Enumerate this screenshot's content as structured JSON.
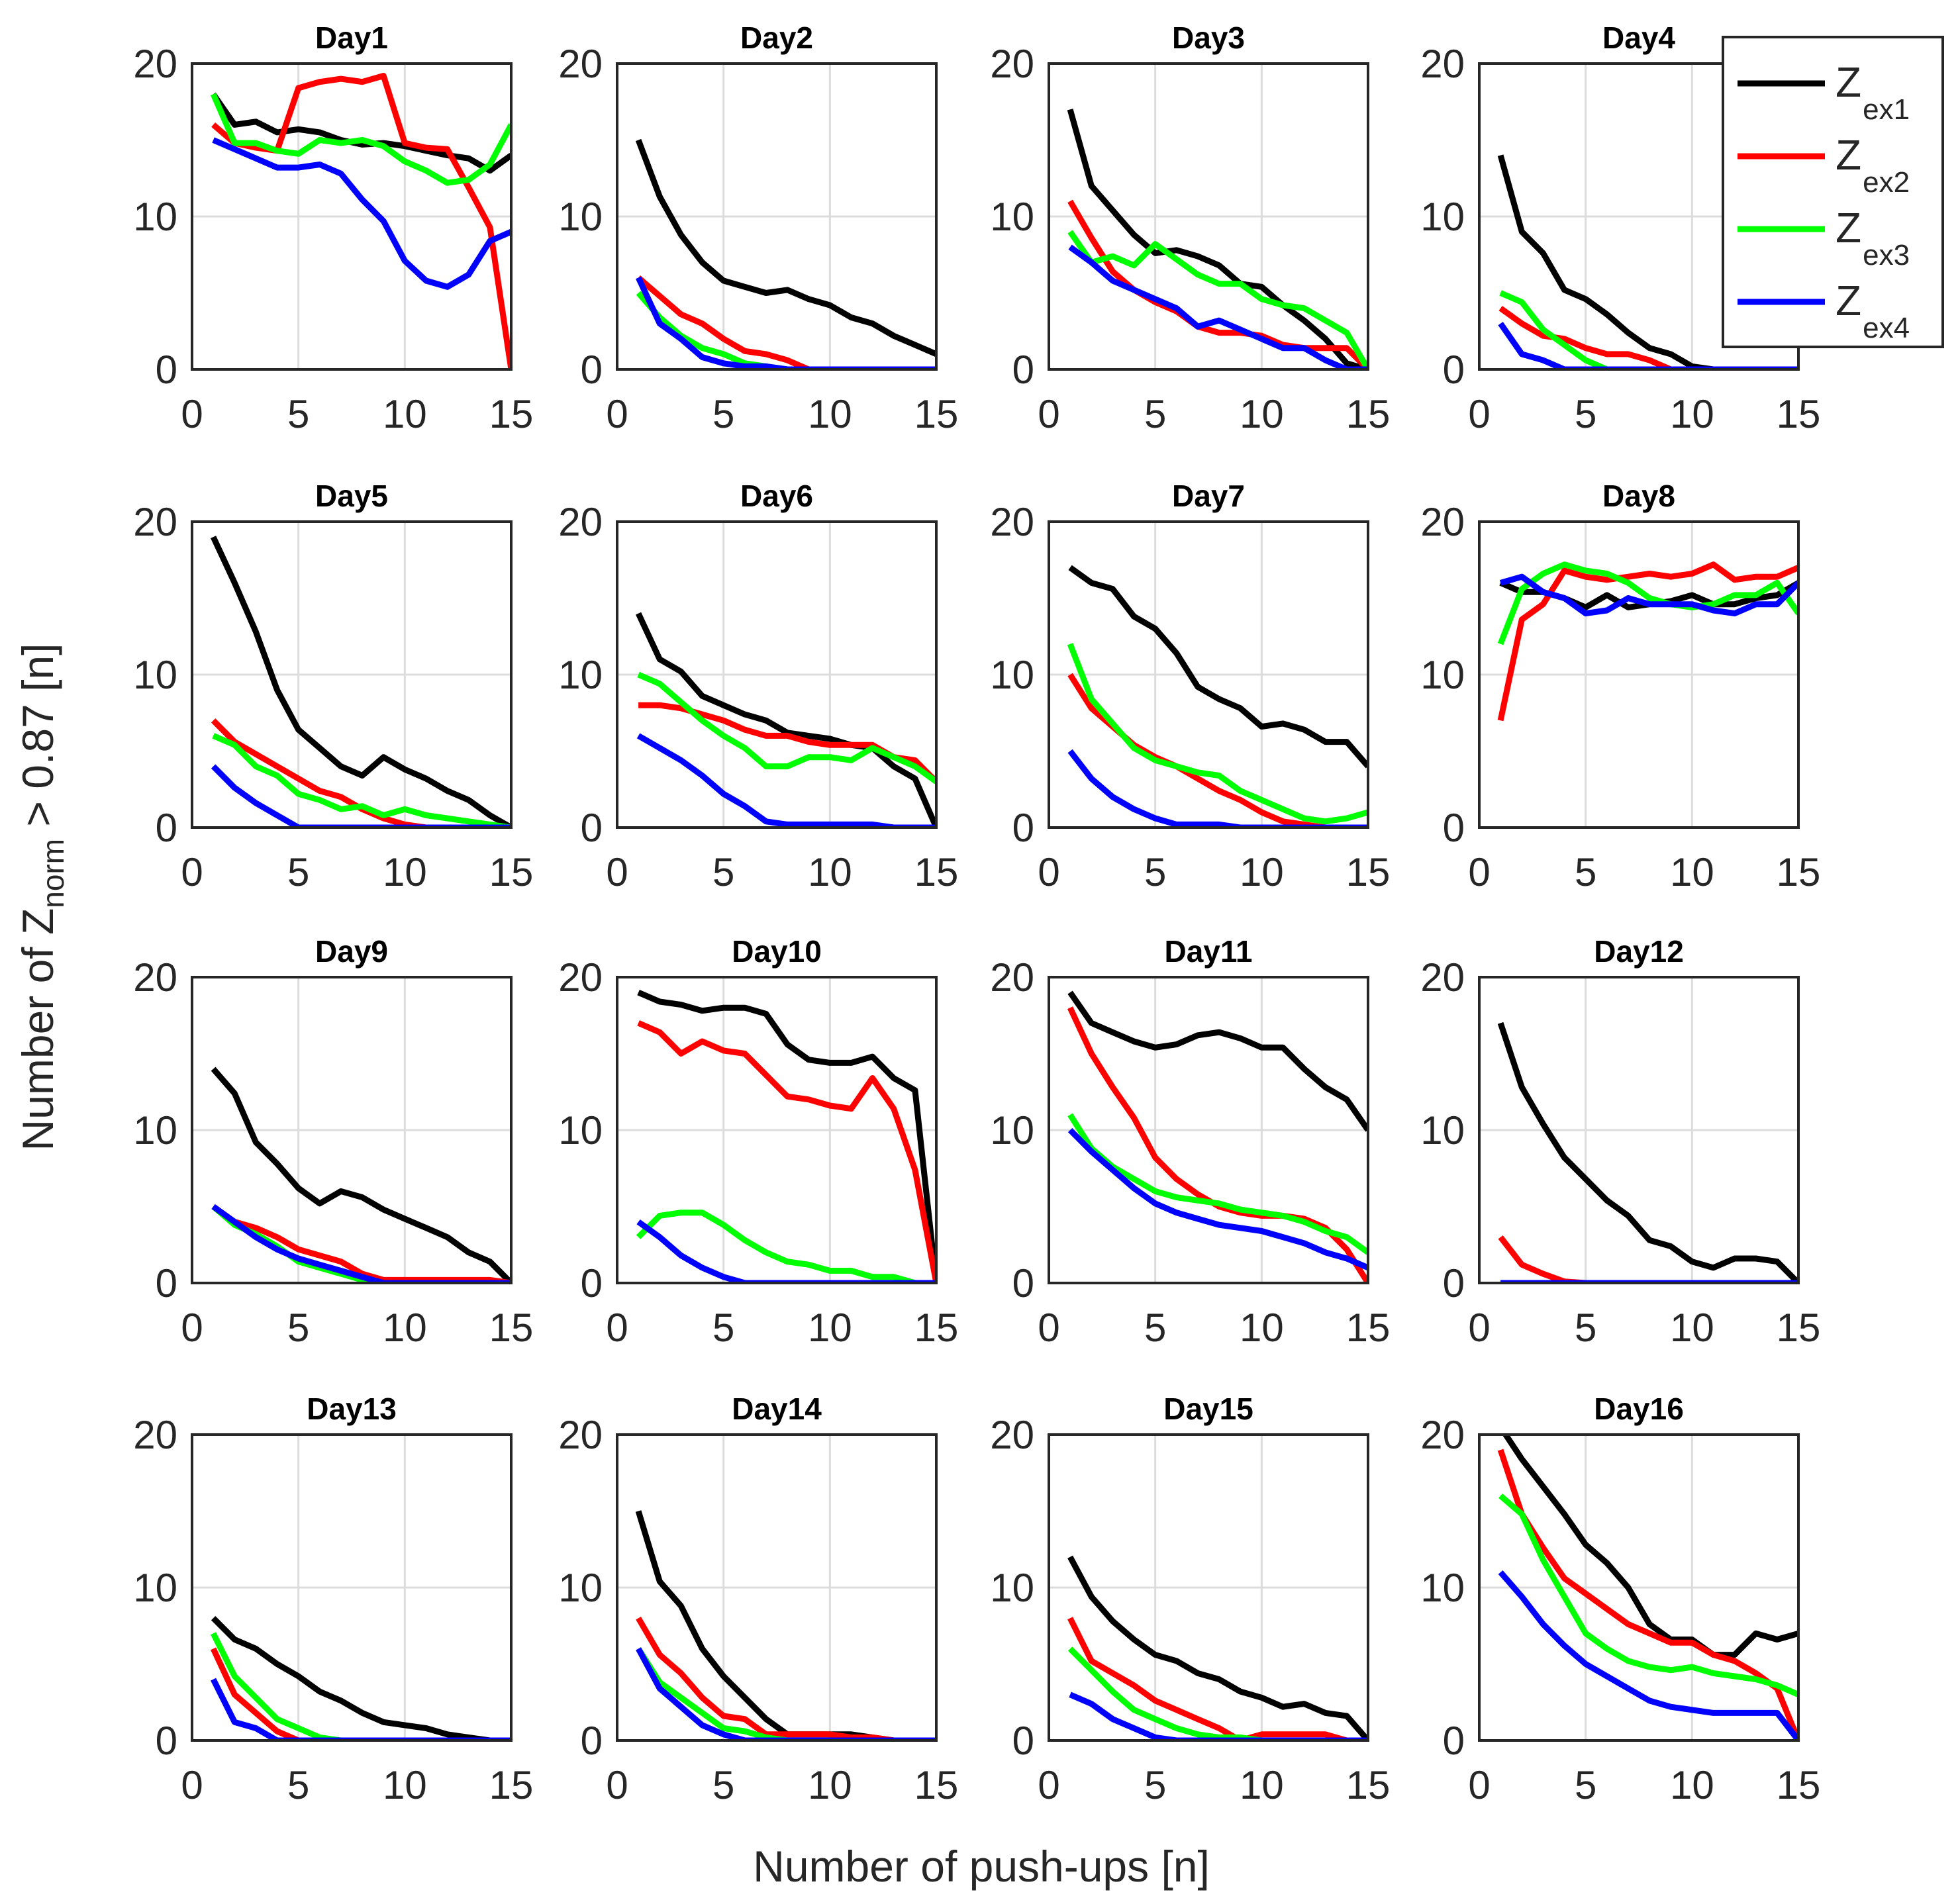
{
  "chart_data": {
    "type": "line",
    "layout": "small-multiples 4x4",
    "xlabel": "Number of push-ups [n]",
    "ylabel": {
      "prefix": "Number of Z",
      "subscript": "norm",
      "suffix": " > 0.87 [n]"
    },
    "xlim": [
      0,
      15
    ],
    "ylim": [
      0,
      20
    ],
    "xticks": [
      0,
      5,
      10,
      15
    ],
    "yticks": [
      0,
      10,
      20
    ],
    "grid": true,
    "legend": {
      "placement": "top-right",
      "entries": [
        {
          "main": "Z",
          "sub": "ex1",
          "color": "#000000"
        },
        {
          "main": "Z",
          "sub": "ex2",
          "color": "#ff0000"
        },
        {
          "main": "Z",
          "sub": "ex3",
          "color": "#00ff00"
        },
        {
          "main": "Z",
          "sub": "ex4",
          "color": "#0000ff"
        }
      ]
    },
    "series_colors": [
      "#000000",
      "#ff0000",
      "#00ff00",
      "#0000ff"
    ],
    "x": [
      1,
      2,
      3,
      4,
      5,
      6,
      7,
      8,
      9,
      10,
      11,
      12,
      13,
      14,
      15
    ],
    "panels": [
      {
        "title": "Day1",
        "series": [
          [
            18,
            16,
            16.2,
            15.5,
            15.7,
            15.5,
            15,
            14.7,
            14.8,
            14.6,
            14.3,
            14,
            13.8,
            13,
            14
          ],
          [
            16,
            14.8,
            14.5,
            14.3,
            18.4,
            18.8,
            19,
            18.8,
            19.2,
            14.8,
            14.5,
            14.4,
            11.9,
            9.3,
            0
          ],
          [
            18,
            14.8,
            14.8,
            14.3,
            14.1,
            15,
            14.8,
            15,
            14.6,
            13.6,
            13,
            12.2,
            12.4,
            13.4,
            16
          ],
          [
            15,
            14.4,
            13.8,
            13.2,
            13.2,
            13.4,
            12.8,
            11.1,
            9.7,
            7.1,
            5.8,
            5.4,
            6.2,
            8.4,
            9
          ]
        ]
      },
      {
        "title": "Day2",
        "series": [
          [
            15,
            11.3,
            8.8,
            7,
            5.8,
            5.4,
            5,
            5.2,
            4.6,
            4.2,
            3.4,
            3,
            2.2,
            1.6,
            1
          ],
          [
            6,
            4.8,
            3.6,
            3,
            2,
            1.2,
            1,
            0.6,
            0,
            0,
            0,
            0,
            0,
            0,
            0
          ],
          [
            5,
            3.4,
            2.2,
            1.4,
            1,
            0.4,
            0.2,
            0,
            0,
            0,
            0,
            0,
            0,
            0,
            0
          ],
          [
            6,
            3,
            2,
            0.8,
            0.4,
            0.2,
            0.2,
            0,
            0,
            0,
            0,
            0,
            0,
            0,
            0
          ]
        ]
      },
      {
        "title": "Day3",
        "series": [
          [
            17,
            12,
            10.4,
            8.8,
            7.6,
            7.8,
            7.4,
            6.8,
            5.6,
            5.4,
            4.2,
            3.2,
            2,
            0.4,
            0
          ],
          [
            11,
            8.6,
            6.4,
            5.2,
            4.4,
            3.8,
            2.8,
            2.4,
            2.4,
            2.2,
            1.6,
            1.4,
            1.4,
            1.4,
            0
          ],
          [
            9,
            7,
            7.4,
            6.8,
            8.2,
            7.2,
            6.2,
            5.6,
            5.6,
            4.6,
            4.2,
            4,
            3.2,
            2.4,
            0
          ],
          [
            8,
            7,
            5.8,
            5.2,
            4.6,
            4,
            2.8,
            3.2,
            2.6,
            2,
            1.4,
            1.4,
            0.6,
            0,
            0
          ]
        ]
      },
      {
        "title": "Day4",
        "series": [
          [
            14,
            9,
            7.6,
            5.2,
            4.6,
            3.6,
            2.4,
            1.4,
            1,
            0.2,
            0,
            0,
            0,
            0,
            0
          ],
          [
            4,
            3,
            2.2,
            2,
            1.4,
            1,
            1,
            0.6,
            0,
            0,
            0,
            0,
            0,
            0,
            0
          ],
          [
            5,
            4.4,
            2.6,
            1.6,
            0.6,
            0,
            0,
            0,
            0,
            0,
            0,
            0,
            0,
            0,
            0
          ],
          [
            3,
            1,
            0.6,
            0,
            0,
            0,
            0,
            0,
            0,
            0,
            0,
            0,
            0,
            0,
            0
          ]
        ]
      },
      {
        "title": "Day5",
        "series": [
          [
            19,
            16,
            12.8,
            9,
            6.4,
            5.2,
            4,
            3.4,
            4.6,
            3.8,
            3.2,
            2.4,
            1.8,
            0.8,
            0
          ],
          [
            7,
            5.6,
            4.8,
            4,
            3.2,
            2.4,
            2,
            1.2,
            0.6,
            0.2,
            0,
            0,
            0,
            0,
            0
          ],
          [
            6,
            5.4,
            4,
            3.4,
            2.2,
            1.8,
            1.2,
            1.4,
            0.8,
            1.2,
            0.8,
            0.6,
            0.4,
            0.2,
            0
          ],
          [
            4,
            2.6,
            1.6,
            0.8,
            0,
            0,
            0,
            0,
            0,
            0,
            0,
            0,
            0,
            0,
            0
          ]
        ]
      },
      {
        "title": "Day6",
        "series": [
          [
            14,
            11,
            10.2,
            8.6,
            8,
            7.4,
            7,
            6.2,
            6,
            5.8,
            5.4,
            5.2,
            4,
            3.2,
            0
          ],
          [
            8,
            8,
            7.8,
            7.4,
            7,
            6.4,
            6,
            6,
            5.6,
            5.4,
            5.4,
            5.4,
            4.6,
            4.4,
            3
          ],
          [
            10,
            9.4,
            8.2,
            7,
            6,
            5.2,
            4,
            4,
            4.6,
            4.6,
            4.4,
            5.2,
            4.6,
            4,
            3
          ],
          [
            6,
            5.2,
            4.4,
            3.4,
            2.2,
            1.4,
            0.4,
            0.2,
            0.2,
            0.2,
            0.2,
            0.2,
            0,
            0,
            0
          ]
        ]
      },
      {
        "title": "Day7",
        "series": [
          [
            17,
            16,
            15.6,
            13.8,
            13,
            11.4,
            9.2,
            8.4,
            7.8,
            6.6,
            6.8,
            6.4,
            5.6,
            5.6,
            4
          ],
          [
            10,
            7.8,
            6.6,
            5.4,
            4.6,
            4,
            3.2,
            2.4,
            1.8,
            1,
            0.4,
            0.2,
            0,
            0,
            0
          ],
          [
            12,
            8.4,
            6.8,
            5.2,
            4.4,
            4,
            3.6,
            3.4,
            2.4,
            1.8,
            1.2,
            0.6,
            0.4,
            0.6,
            1
          ],
          [
            5,
            3.2,
            2,
            1.2,
            0.6,
            0.2,
            0.2,
            0.2,
            0,
            0,
            0,
            0,
            0,
            0,
            0
          ]
        ]
      },
      {
        "title": "Day8",
        "series": [
          [
            16,
            15.4,
            15.4,
            15,
            14.4,
            15.2,
            14.4,
            14.6,
            14.8,
            15.2,
            14.6,
            14.6,
            15,
            15.2,
            16
          ],
          [
            7,
            13.6,
            14.6,
            16.8,
            16.4,
            16.2,
            16.4,
            16.6,
            16.4,
            16.6,
            17.2,
            16.2,
            16.4,
            16.4,
            17
          ],
          [
            12,
            15.6,
            16.6,
            17.2,
            16.8,
            16.6,
            16,
            15,
            14.6,
            14.4,
            14.6,
            15.2,
            15.2,
            16,
            14
          ],
          [
            16,
            16.4,
            15.4,
            15,
            14,
            14.2,
            15,
            14.6,
            14.6,
            14.6,
            14.2,
            14,
            14.6,
            14.6,
            16
          ]
        ]
      },
      {
        "title": "Day9",
        "series": [
          [
            14,
            12.4,
            9.2,
            7.8,
            6.2,
            5.2,
            6,
            5.6,
            4.8,
            4.2,
            3.6,
            3,
            2,
            1.4,
            0
          ],
          [
            5,
            4,
            3.6,
            3,
            2.2,
            1.8,
            1.4,
            0.6,
            0.2,
            0.2,
            0.2,
            0.2,
            0.2,
            0.2,
            0
          ],
          [
            5,
            3.8,
            3.2,
            2.4,
            1.4,
            1,
            0.6,
            0.2,
            0,
            0,
            0,
            0,
            0,
            0,
            0
          ],
          [
            5,
            4,
            3,
            2.2,
            1.6,
            1.2,
            0.8,
            0.4,
            0,
            0,
            0,
            0,
            0,
            0,
            0
          ]
        ]
      },
      {
        "title": "Day10",
        "series": [
          [
            19,
            18.4,
            18.2,
            17.8,
            18,
            18,
            17.6,
            15.6,
            14.6,
            14.4,
            14.4,
            14.8,
            13.4,
            12.6,
            0
          ],
          [
            17,
            16.4,
            15,
            15.8,
            15.2,
            15,
            13.6,
            12.2,
            12,
            11.6,
            11.4,
            13.4,
            11.4,
            7.4,
            0
          ],
          [
            3,
            4.4,
            4.6,
            4.6,
            3.8,
            2.8,
            2,
            1.4,
            1.2,
            0.8,
            0.8,
            0.4,
            0.4,
            0,
            0
          ],
          [
            4,
            3,
            1.8,
            1,
            0.4,
            0,
            0,
            0,
            0,
            0,
            0,
            0,
            0,
            0,
            0
          ]
        ]
      },
      {
        "title": "Day11",
        "series": [
          [
            19,
            17,
            16.4,
            15.8,
            15.4,
            15.6,
            16.2,
            16.4,
            16,
            15.4,
            15.4,
            14,
            12.8,
            12,
            10
          ],
          [
            18,
            15,
            12.8,
            10.8,
            8.2,
            6.8,
            5.8,
            5,
            4.6,
            4.4,
            4.4,
            4.2,
            3.6,
            2.2,
            0
          ],
          [
            11,
            8.8,
            7.6,
            6.8,
            6,
            5.6,
            5.4,
            5.2,
            4.8,
            4.6,
            4.4,
            4,
            3.4,
            3,
            2
          ],
          [
            10,
            8.6,
            7.4,
            6.2,
            5.2,
            4.6,
            4.2,
            3.8,
            3.6,
            3.4,
            3,
            2.6,
            2,
            1.6,
            1
          ]
        ]
      },
      {
        "title": "Day12",
        "series": [
          [
            17,
            12.8,
            10.4,
            8.2,
            6.8,
            5.4,
            4.4,
            2.8,
            2.4,
            1.4,
            1,
            1.6,
            1.6,
            1.4,
            0
          ],
          [
            3,
            1.2,
            0.6,
            0.1,
            0,
            0,
            0,
            0,
            0,
            0,
            0,
            0,
            0,
            0,
            0
          ],
          [
            0,
            0,
            0,
            0,
            0,
            0,
            0,
            0,
            0,
            0,
            0,
            0,
            0,
            0,
            0
          ],
          [
            0,
            0,
            0,
            0,
            0,
            0,
            0,
            0,
            0,
            0,
            0,
            0,
            0,
            0,
            0
          ]
        ]
      },
      {
        "title": "Day13",
        "series": [
          [
            8,
            6.6,
            6,
            5,
            4.2,
            3.2,
            2.6,
            1.8,
            1.2,
            1,
            0.8,
            0.4,
            0.2,
            0,
            0
          ],
          [
            6,
            3,
            1.8,
            0.6,
            0,
            0,
            0,
            0,
            0,
            0,
            0,
            0,
            0,
            0,
            0
          ],
          [
            7,
            4.2,
            2.8,
            1.4,
            0.8,
            0.2,
            0,
            0,
            0,
            0,
            0,
            0,
            0,
            0,
            0
          ],
          [
            4,
            1.2,
            0.8,
            0,
            0,
            0,
            0,
            0,
            0,
            0,
            0,
            0,
            0,
            0,
            0
          ]
        ]
      },
      {
        "title": "Day14",
        "series": [
          [
            15,
            10.4,
            8.8,
            6,
            4.2,
            2.8,
            1.4,
            0.4,
            0.4,
            0.4,
            0.4,
            0.2,
            0,
            0,
            0
          ],
          [
            8,
            5.6,
            4.4,
            2.8,
            1.6,
            1.4,
            0.4,
            0.4,
            0.4,
            0.4,
            0.2,
            0.2,
            0,
            0,
            0
          ],
          [
            6,
            3.8,
            2.8,
            1.8,
            0.8,
            0.6,
            0.2,
            0,
            0,
            0,
            0,
            0,
            0,
            0,
            0
          ],
          [
            6,
            3.4,
            2.2,
            1,
            0.4,
            0,
            0,
            0,
            0,
            0,
            0,
            0,
            0,
            0,
            0
          ]
        ]
      },
      {
        "title": "Day15",
        "series": [
          [
            12,
            9.4,
            7.8,
            6.6,
            5.6,
            5.2,
            4.4,
            4,
            3.2,
            2.8,
            2.2,
            2.4,
            1.8,
            1.6,
            0
          ],
          [
            8,
            5.2,
            4.4,
            3.6,
            2.6,
            2,
            1.4,
            0.8,
            0,
            0.4,
            0.4,
            0.4,
            0.4,
            0,
            0
          ],
          [
            6,
            4.6,
            3.2,
            2,
            1.4,
            0.8,
            0.4,
            0.2,
            0.2,
            0,
            0,
            0,
            0,
            0,
            0
          ],
          [
            3,
            2.4,
            1.4,
            0.8,
            0.2,
            0,
            0,
            0,
            0,
            0,
            0,
            0,
            0,
            0,
            0
          ]
        ]
      },
      {
        "title": "Day16",
        "series": [
          [
            20.5,
            18.4,
            16.6,
            14.8,
            12.8,
            11.6,
            10,
            7.6,
            6.6,
            6.6,
            5.6,
            5.6,
            7,
            6.6,
            7
          ],
          [
            19,
            14.8,
            12.6,
            10.6,
            9.6,
            8.6,
            7.6,
            7,
            6.4,
            6.4,
            5.6,
            5.2,
            4.4,
            3.4,
            0
          ],
          [
            16,
            14.8,
            11.8,
            9.4,
            7,
            6,
            5.2,
            4.8,
            4.6,
            4.8,
            4.4,
            4.2,
            4,
            3.6,
            3
          ],
          [
            11,
            9.4,
            7.6,
            6.2,
            5,
            4.2,
            3.4,
            2.6,
            2.2,
            2,
            1.8,
            1.8,
            1.8,
            1.8,
            0
          ]
        ]
      }
    ]
  }
}
